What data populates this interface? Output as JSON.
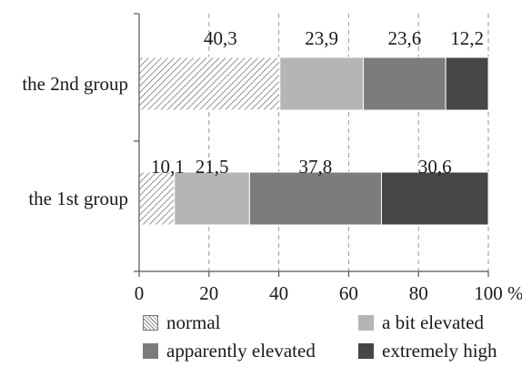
{
  "chart_data": {
    "type": "bar",
    "orientation": "horizontal",
    "stacked": true,
    "categories": [
      "the 2nd group",
      "the 1st group"
    ],
    "series": [
      {
        "name": "normal",
        "values": [
          40.3,
          10.1
        ],
        "labels": [
          "40,3",
          "10,1"
        ],
        "color": "#ffffff",
        "pattern": "diagonal-hatch"
      },
      {
        "name": "a bit elevated",
        "values": [
          23.9,
          21.5
        ],
        "labels": [
          "23,9",
          "21,5"
        ],
        "color": "#b5b5b5"
      },
      {
        "name": "apparently elevated",
        "values": [
          23.6,
          37.8
        ],
        "labels": [
          "23,6",
          "37,8"
        ],
        "color": "#7c7c7c"
      },
      {
        "name": "extremely high",
        "values": [
          12.2,
          30.6
        ],
        "labels": [
          "12,2",
          "30,6"
        ],
        "color": "#464646"
      }
    ],
    "xlim": [
      0,
      100
    ],
    "xticks": [
      0,
      20,
      40,
      60,
      80,
      100
    ],
    "xtick_labels": [
      "0",
      "20",
      "40",
      "60",
      "80",
      "100"
    ],
    "x_unit": "%",
    "grid": "vertical dashed",
    "legend_position": "bottom"
  }
}
